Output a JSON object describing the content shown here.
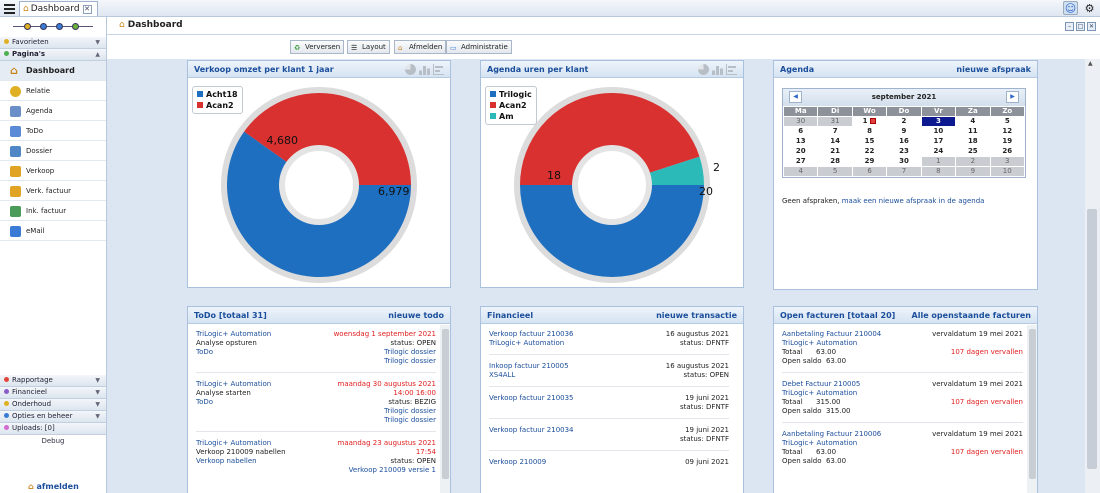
{
  "app": {
    "tab_title": "Dashboard",
    "page_title": "Dashboard"
  },
  "sidebar": {
    "favorites_label": "Favorieten",
    "pages_label": "Pagina's",
    "items": [
      {
        "label": "Dashboard",
        "icon": "home-icon"
      },
      {
        "label": "Relatie",
        "icon": "smiley-icon"
      },
      {
        "label": "Agenda",
        "icon": "calendar-icon"
      },
      {
        "label": "ToDo",
        "icon": "todo-icon"
      },
      {
        "label": "Dossier",
        "icon": "folder-icon"
      },
      {
        "label": "Verkoop",
        "icon": "euro-icon"
      },
      {
        "label": "Verk. factuur",
        "icon": "euro-invoice-icon"
      },
      {
        "label": "Ink. factuur",
        "icon": "purchase-icon"
      },
      {
        "label": "eMail",
        "icon": "email-icon"
      }
    ],
    "bottom_sections": [
      {
        "label": "Rapportage",
        "color": "#e0463c"
      },
      {
        "label": "Financieel",
        "color": "#8a5cc8"
      },
      {
        "label": "Onderhoud",
        "color": "#e0b023"
      },
      {
        "label": "Opties en beheer",
        "color": "#3a7bd5"
      },
      {
        "label": "Uploads: [0]",
        "color": "#d26ad0"
      }
    ],
    "debug_label": "Debug",
    "logout_label": "afmelden"
  },
  "toolbar": {
    "refresh": "Verversen",
    "layout": "Layout",
    "logout": "Afmelden",
    "admin": "Administratie"
  },
  "panels": {
    "sales": {
      "title": "Verkoop omzet per klant 1 jaar",
      "chart_data": {
        "type": "pie",
        "labels": [
          "Acht18",
          "Acan2"
        ],
        "values": [
          6979,
          4680
        ],
        "value_labels": [
          "6,979",
          "4,680"
        ],
        "colors": [
          "#1f6fc0",
          "#d93030"
        ]
      }
    },
    "agenda_hours": {
      "title": "Agenda uren per klant",
      "chart_data": {
        "type": "pie",
        "labels": [
          "Trilogic",
          "Acan2",
          "Am"
        ],
        "values": [
          20,
          18,
          2
        ],
        "value_labels": [
          "20",
          "18",
          "2"
        ],
        "colors": [
          "#1f6fc0",
          "#d93030",
          "#2bbab8"
        ]
      }
    },
    "agenda": {
      "title": "Agenda",
      "action": "nieuwe afspraak",
      "month": "september 2021",
      "weekdays": [
        "Ma",
        "Di",
        "Wo",
        "Do",
        "Vr",
        "Za",
        "Zo"
      ],
      "weeks": [
        [
          "30",
          "31",
          "1",
          "2",
          "3",
          "4",
          "5"
        ],
        [
          "6",
          "7",
          "8",
          "9",
          "10",
          "11",
          "12"
        ],
        [
          "13",
          "14",
          "15",
          "16",
          "17",
          "18",
          "19"
        ],
        [
          "20",
          "21",
          "22",
          "23",
          "24",
          "25",
          "26"
        ],
        [
          "27",
          "28",
          "29",
          "30",
          "1",
          "2",
          "3"
        ],
        [
          "4",
          "5",
          "6",
          "7",
          "8",
          "9",
          "10"
        ]
      ],
      "today": "3",
      "empty_text": "Geen afspraken,",
      "empty_link": "maak een nieuwe afspraak in de agenda"
    },
    "todo": {
      "title": "ToDo [totaal 31]",
      "action": "nieuwe todo",
      "entries": [
        {
          "rows": [
            {
              "left": "TriLogic+ Automation",
              "lc": "blue",
              "right": "woensdag 1 september 2021",
              "rc": "red"
            },
            {
              "left": "Analyse opsturen",
              "lc": "",
              "right": "status: OPEN",
              "rc": ""
            },
            {
              "left": "ToDo",
              "lc": "blue",
              "right": "Trilogic dossier",
              "rc": "blue"
            },
            {
              "left": "",
              "lc": "",
              "right": "Trilogic dossier",
              "rc": "blue"
            }
          ]
        },
        {
          "rows": [
            {
              "left": "TriLogic+ Automation",
              "lc": "blue",
              "right": "maandag 30 augustus 2021",
              "rc": "red"
            },
            {
              "left": "Analyse starten",
              "lc": "",
              "right": "14:00 16:00",
              "rc": "red"
            },
            {
              "left": "ToDo",
              "lc": "blue",
              "right": "status: BEZIG",
              "rc": ""
            },
            {
              "left": "",
              "lc": "",
              "right": "Trilogic dossier",
              "rc": "blue"
            },
            {
              "left": "",
              "lc": "",
              "right": "Trilogic dossier",
              "rc": "blue"
            }
          ]
        },
        {
          "rows": [
            {
              "left": "TriLogic+ Automation",
              "lc": "blue",
              "right": "maandag 23 augustus 2021",
              "rc": "red"
            },
            {
              "left": "Verkoop 210009 nabellen",
              "lc": "",
              "right": "17:54",
              "rc": "red"
            },
            {
              "left": "Verkoop nabellen",
              "lc": "blue",
              "right": "status: OPEN",
              "rc": ""
            },
            {
              "left": "",
              "lc": "",
              "right": "Verkoop 210009 versie 1",
              "rc": "blue"
            }
          ]
        }
      ]
    },
    "finance": {
      "title": "Financieel",
      "action": "nieuwe transactie",
      "entries": [
        {
          "rows": [
            {
              "left": "Verkoop factuur 210036",
              "lc": "blue",
              "right": "16 augustus 2021",
              "rc": ""
            },
            {
              "left": "TriLogic+ Automation",
              "lc": "blue",
              "right": "status: DFNTF",
              "rc": ""
            }
          ]
        },
        {
          "rows": [
            {
              "left": "Inkoop factuur 210005",
              "lc": "blue",
              "right": "16 augustus 2021",
              "rc": ""
            },
            {
              "left": "XS4ALL",
              "lc": "blue",
              "right": "status: OPEN",
              "rc": ""
            }
          ]
        },
        {
          "rows": [
            {
              "left": "Verkoop factuur 210035",
              "lc": "blue",
              "right": "19 juni 2021",
              "rc": ""
            },
            {
              "left": "",
              "lc": "",
              "right": "status: DFNTF",
              "rc": ""
            }
          ]
        },
        {
          "rows": [
            {
              "left": "Verkoop factuur 210034",
              "lc": "blue",
              "right": "19 juni 2021",
              "rc": ""
            },
            {
              "left": "",
              "lc": "",
              "right": "status: DFNTF",
              "rc": ""
            }
          ]
        },
        {
          "rows": [
            {
              "left": "Verkoop 210009",
              "lc": "blue",
              "right": "09 juni 2021",
              "rc": ""
            }
          ]
        }
      ]
    },
    "invoices": {
      "title": "Open facturen [totaal 20]",
      "action": "Alle openstaande facturen",
      "entries": [
        {
          "rows": [
            {
              "left": "Aanbetaling Factuur 210004",
              "lc": "blue",
              "right": "vervaldatum 19 mei 2021",
              "rc": ""
            },
            {
              "left": "TriLogic+ Automation",
              "lc": "blue",
              "right": "",
              "rc": ""
            },
            {
              "left": "Totaal      63.00",
              "lc": "",
              "right": "107 dagen vervallen",
              "rc": "red"
            },
            {
              "left": "Open saldo  63.00",
              "lc": "",
              "right": "",
              "rc": ""
            }
          ]
        },
        {
          "rows": [
            {
              "left": "Debet Factuur 210005",
              "lc": "blue",
              "right": "vervaldatum 19 mei 2021",
              "rc": ""
            },
            {
              "left": "TriLogic+ Automation",
              "lc": "blue",
              "right": "",
              "rc": ""
            },
            {
              "left": "Totaal      315.00",
              "lc": "",
              "right": "107 dagen vervallen",
              "rc": "red"
            },
            {
              "left": "Open saldo  315.00",
              "lc": "",
              "right": "",
              "rc": ""
            }
          ]
        },
        {
          "rows": [
            {
              "left": "Aanbetaling Factuur 210006",
              "lc": "blue",
              "right": "vervaldatum 19 mei 2021",
              "rc": ""
            },
            {
              "left": "TriLogic+ Automation",
              "lc": "blue",
              "right": "",
              "rc": ""
            },
            {
              "left": "Totaal      63.00",
              "lc": "",
              "right": "107 dagen vervallen",
              "rc": "red"
            },
            {
              "left": "Open saldo  63.00",
              "lc": "",
              "right": "",
              "rc": ""
            }
          ]
        }
      ]
    }
  }
}
